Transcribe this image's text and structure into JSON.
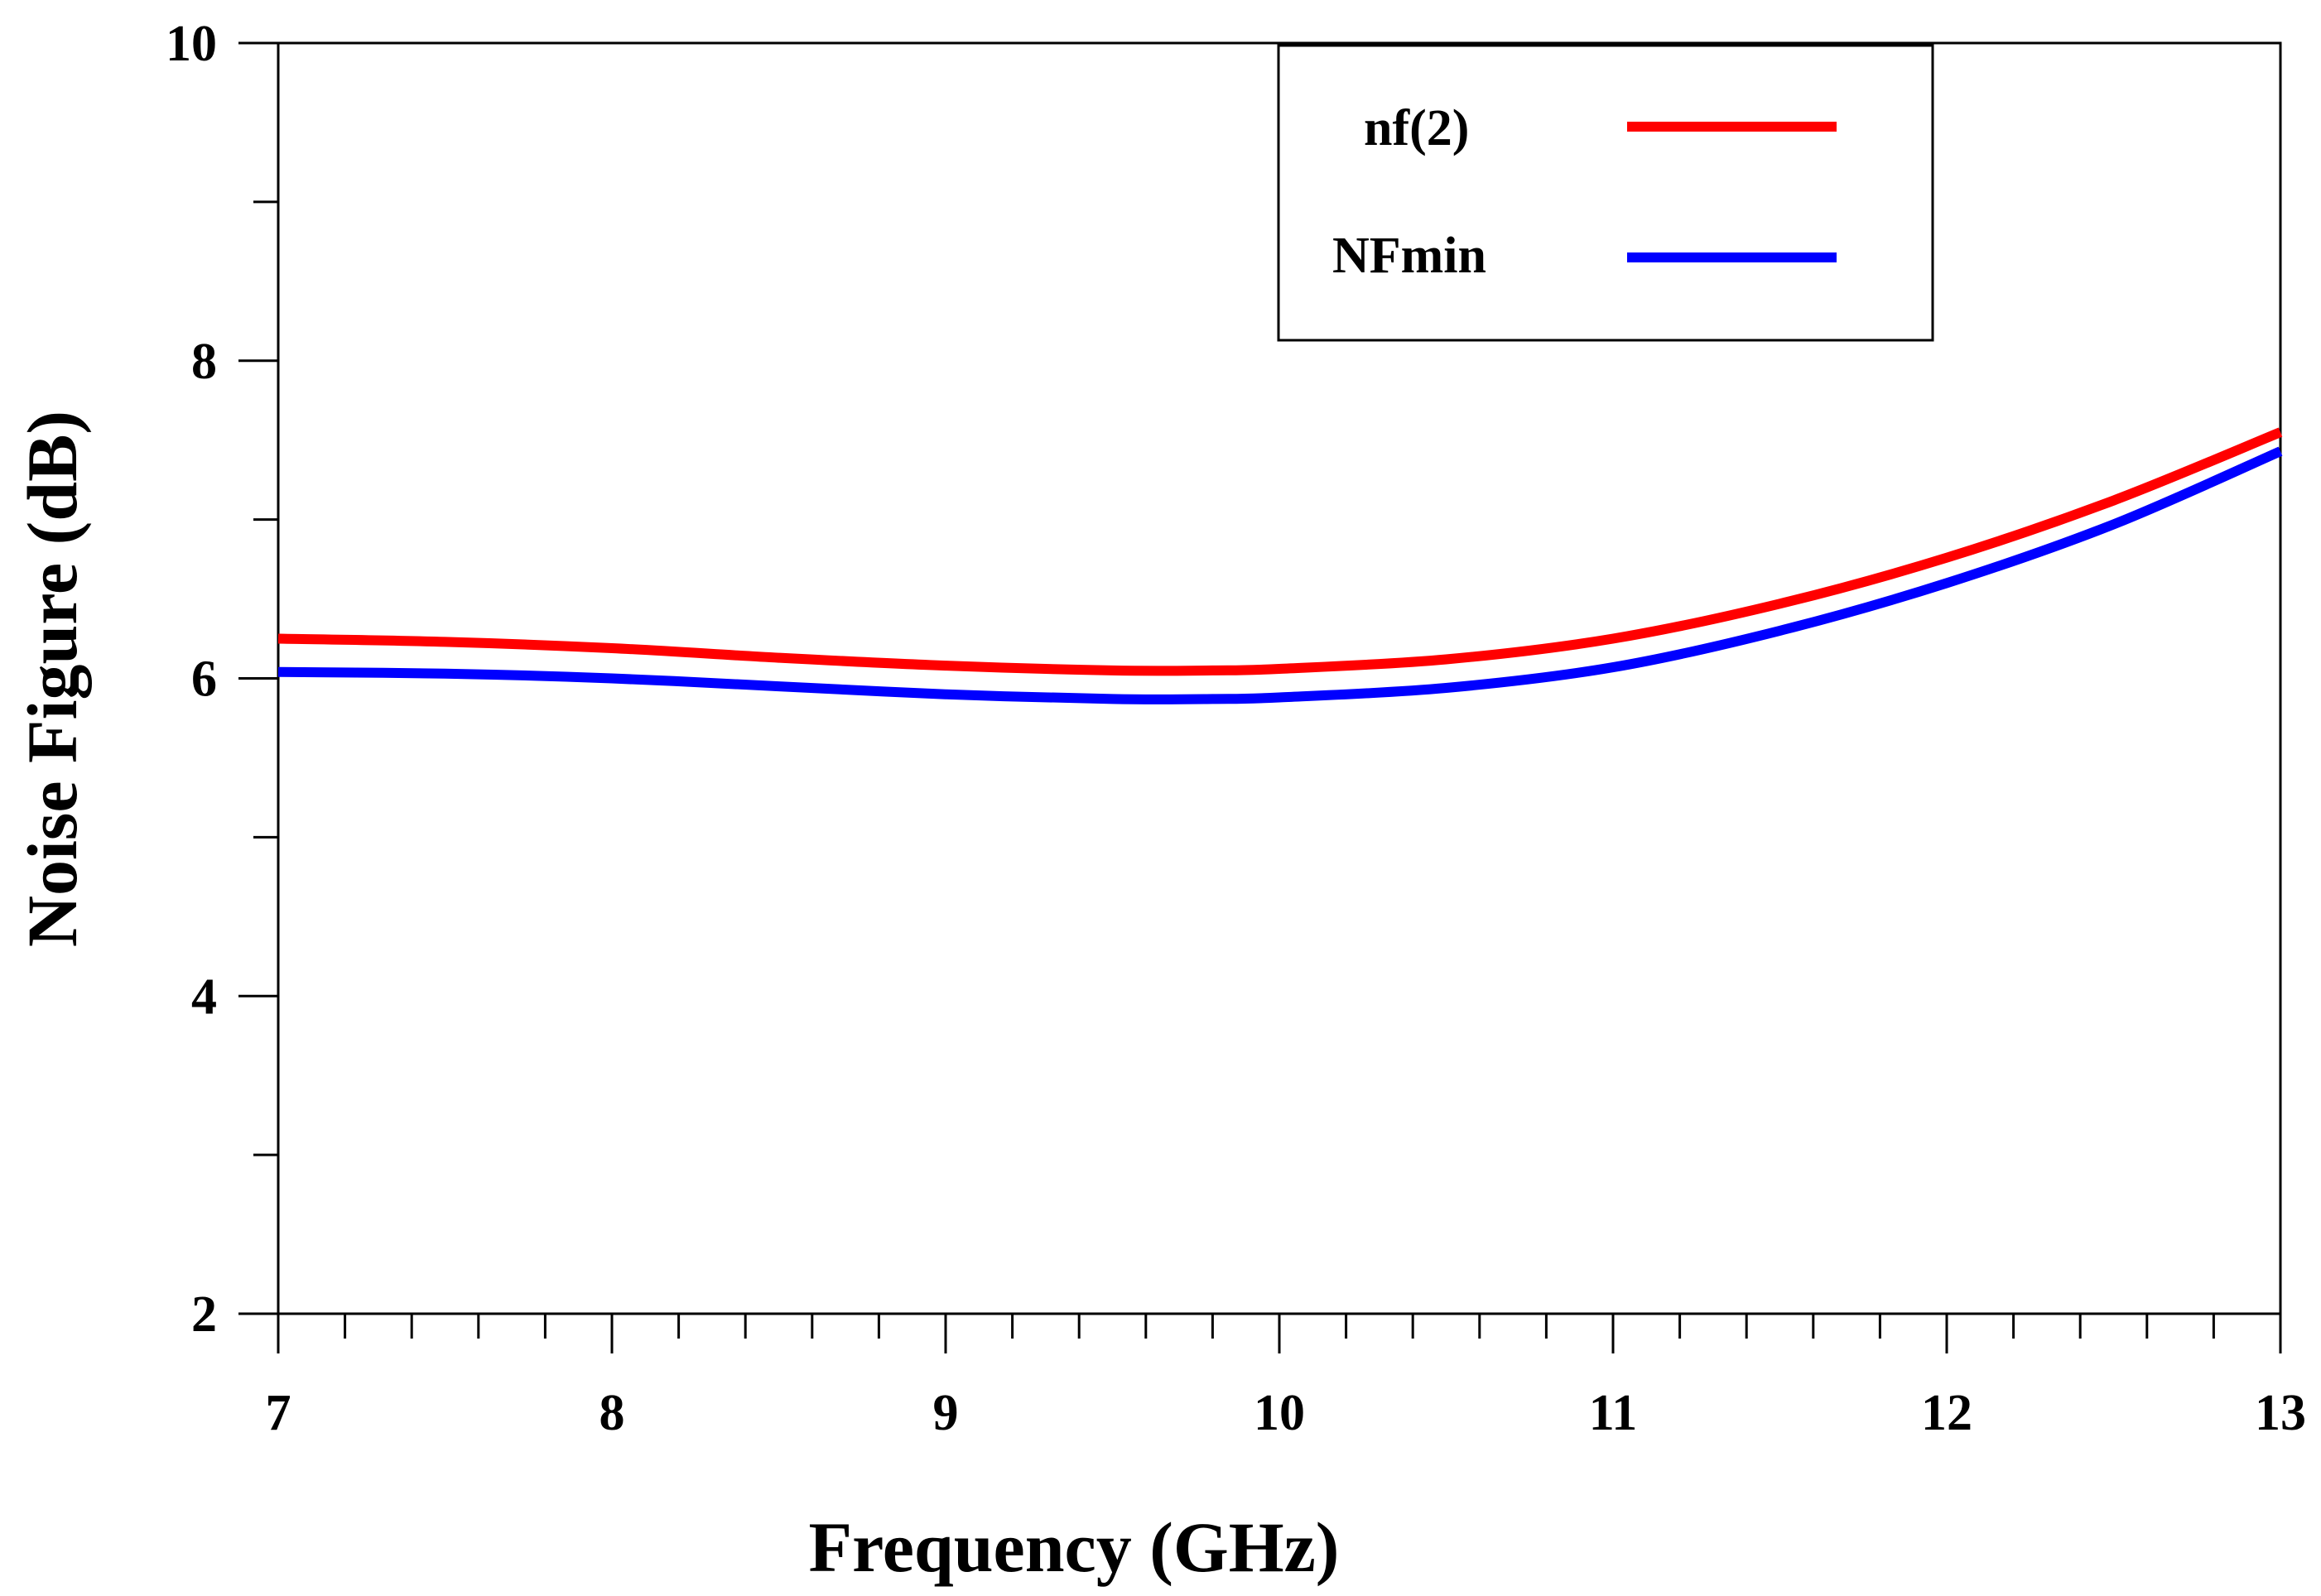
{
  "chart_data": {
    "type": "line",
    "xlabel": "Frequency (GHz)",
    "ylabel": "Noise Figure (dB)",
    "xlim": [
      7,
      13
    ],
    "ylim": [
      2,
      10
    ],
    "x_major_ticks": [
      7,
      8,
      9,
      10,
      11,
      12,
      13
    ],
    "x_tick_labels": [
      "7",
      "8",
      "9",
      "10",
      "11",
      "12",
      "13"
    ],
    "x_minor_step": 0.2,
    "y_major_ticks": [
      2,
      4,
      6,
      8,
      10
    ],
    "y_tick_labels": [
      "2",
      "4",
      "6",
      "8",
      "10"
    ],
    "y_minor_step": 1,
    "grid": false,
    "legend_position": "top-center",
    "x": [
      7.0,
      7.5,
      8.0,
      8.5,
      9.0,
      9.5,
      9.8,
      10.0,
      10.5,
      11.0,
      11.5,
      12.0,
      12.5,
      13.0
    ],
    "series": [
      {
        "name": "nf(2)",
        "color": "#ff0000",
        "values": [
          6.25,
          6.23,
          6.19,
          6.13,
          6.08,
          6.05,
          6.05,
          6.06,
          6.12,
          6.25,
          6.47,
          6.76,
          7.12,
          7.55
        ]
      },
      {
        "name": "NFmin",
        "color": "#0000ff",
        "values": [
          6.04,
          6.03,
          6.0,
          5.95,
          5.9,
          5.87,
          5.87,
          5.88,
          5.94,
          6.07,
          6.3,
          6.6,
          6.97,
          7.43
        ]
      }
    ]
  }
}
